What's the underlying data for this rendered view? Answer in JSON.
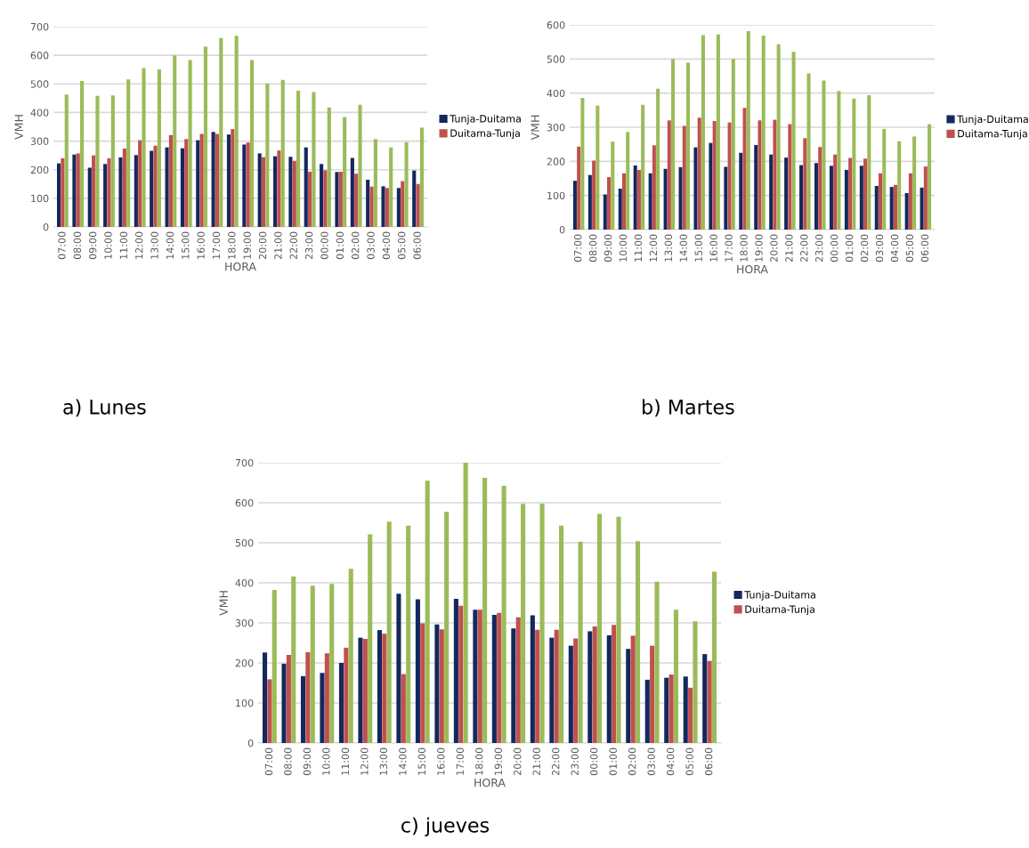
{
  "chart_data": [
    {
      "type": "bar",
      "title": "a) Lunes",
      "xlabel": "HORA",
      "ylabel": "VMH",
      "ylim": [
        0,
        700
      ],
      "yticks": [
        0,
        100,
        200,
        300,
        400,
        500,
        600,
        700
      ],
      "grid": "y",
      "legend": "right",
      "categories": [
        "07:00",
        "08:00",
        "09:00",
        "10:00",
        "11:00",
        "12:00",
        "13:00",
        "14:00",
        "15:00",
        "16:00",
        "17:00",
        "18:00",
        "19:00",
        "20:00",
        "21:00",
        "22:00",
        "23:00",
        "00:00",
        "01:00",
        "02:00",
        "03:00",
        "04:00",
        "05:00",
        "06:00"
      ],
      "series": [
        {
          "name": "Tunja-Duitama",
          "color": "#14285e",
          "values": [
            222,
            253,
            207,
            220,
            243,
            251,
            266,
            278,
            275,
            303,
            332,
            323,
            288,
            257,
            247,
            245,
            278,
            220,
            192,
            241,
            165,
            142,
            136,
            197
          ]
        },
        {
          "name": "Duitama-Tunja",
          "color": "#c0504d",
          "values": [
            240,
            257,
            250,
            240,
            274,
            303,
            284,
            321,
            307,
            325,
            325,
            342,
            295,
            244,
            267,
            231,
            193,
            198,
            193,
            186,
            141,
            136,
            160,
            150
          ]
        },
        {
          "color": "#9bbb59",
          "values": [
            463,
            510,
            458,
            460,
            516,
            555,
            551,
            600,
            583,
            630,
            660,
            668,
            583,
            501,
            514,
            476,
            471,
            418,
            384,
            427,
            307,
            278,
            296,
            347
          ]
        }
      ]
    },
    {
      "type": "bar",
      "title": "b) Martes",
      "xlabel": "HORA",
      "ylabel": "VMH",
      "ylim": [
        0,
        600
      ],
      "yticks": [
        0,
        100,
        200,
        300,
        400,
        500,
        600
      ],
      "grid": "y",
      "legend": "right",
      "categories": [
        "07:00",
        "08:00",
        "09:00",
        "10:00",
        "11:00",
        "12:00",
        "13:00",
        "14:00",
        "15:00",
        "16:00",
        "17:00",
        "18:00",
        "19:00",
        "20:00",
        "21:00",
        "22:00",
        "23:00",
        "00:00",
        "01:00",
        "02:00",
        "03:00",
        "04:00",
        "05:00",
        "06:00"
      ],
      "series": [
        {
          "name": "Tunja-Duitama",
          "color": "#14285e",
          "values": [
            143,
            160,
            103,
            120,
            188,
            165,
            178,
            183,
            241,
            254,
            184,
            225,
            248,
            220,
            211,
            189,
            195,
            187,
            175,
            187,
            128,
            125,
            107,
            123
          ]
        },
        {
          "name": "Duitama-Tunja",
          "color": "#c0504d",
          "values": [
            243,
            202,
            154,
            165,
            175,
            247,
            320,
            304,
            328,
            318,
            314,
            357,
            320,
            322,
            309,
            268,
            242,
            220,
            210,
            208,
            165,
            131,
            165,
            185
          ]
        },
        {
          "color": "#9bbb59",
          "values": [
            386,
            363,
            258,
            286,
            366,
            413,
            500,
            489,
            570,
            572,
            500,
            582,
            569,
            543,
            521,
            458,
            437,
            406,
            384,
            394,
            295,
            259,
            273,
            309
          ]
        }
      ]
    },
    {
      "type": "bar",
      "title": "c) jueves",
      "xlabel": "HORA",
      "ylabel": "VMH",
      "ylim": [
        0,
        700
      ],
      "yticks": [
        0,
        100,
        200,
        300,
        400,
        500,
        600,
        700
      ],
      "grid": "y",
      "legend": "right",
      "categories": [
        "07:00",
        "08:00",
        "09:00",
        "10:00",
        "11:00",
        "12:00",
        "13:00",
        "14:00",
        "15:00",
        "16:00",
        "17:00",
        "18:00",
        "19:00",
        "20:00",
        "21:00",
        "22:00",
        "23:00",
        "00:00",
        "01:00",
        "02:00",
        "03:00",
        "04:00",
        "05:00",
        "06:00"
      ],
      "series": [
        {
          "name": "Tunja-Duitama",
          "color": "#14285e",
          "values": [
            226,
            198,
            167,
            175,
            200,
            263,
            282,
            373,
            359,
            296,
            360,
            333,
            320,
            286,
            319,
            263,
            243,
            279,
            269,
            235,
            158,
            163,
            166,
            222
          ]
        },
        {
          "name": "Duitama-Tunja",
          "color": "#c0504d",
          "values": [
            159,
            220,
            227,
            224,
            238,
            260,
            273,
            172,
            299,
            284,
            343,
            333,
            325,
            314,
            283,
            283,
            261,
            291,
            295,
            268,
            243,
            171,
            138,
            205
          ]
        },
        {
          "color": "#9bbb59",
          "values": [
            382,
            416,
            393,
            397,
            435,
            521,
            553,
            543,
            655,
            577,
            700,
            662,
            642,
            597,
            598,
            543,
            503,
            572,
            565,
            504,
            403,
            333,
            304,
            428
          ]
        }
      ]
    }
  ]
}
